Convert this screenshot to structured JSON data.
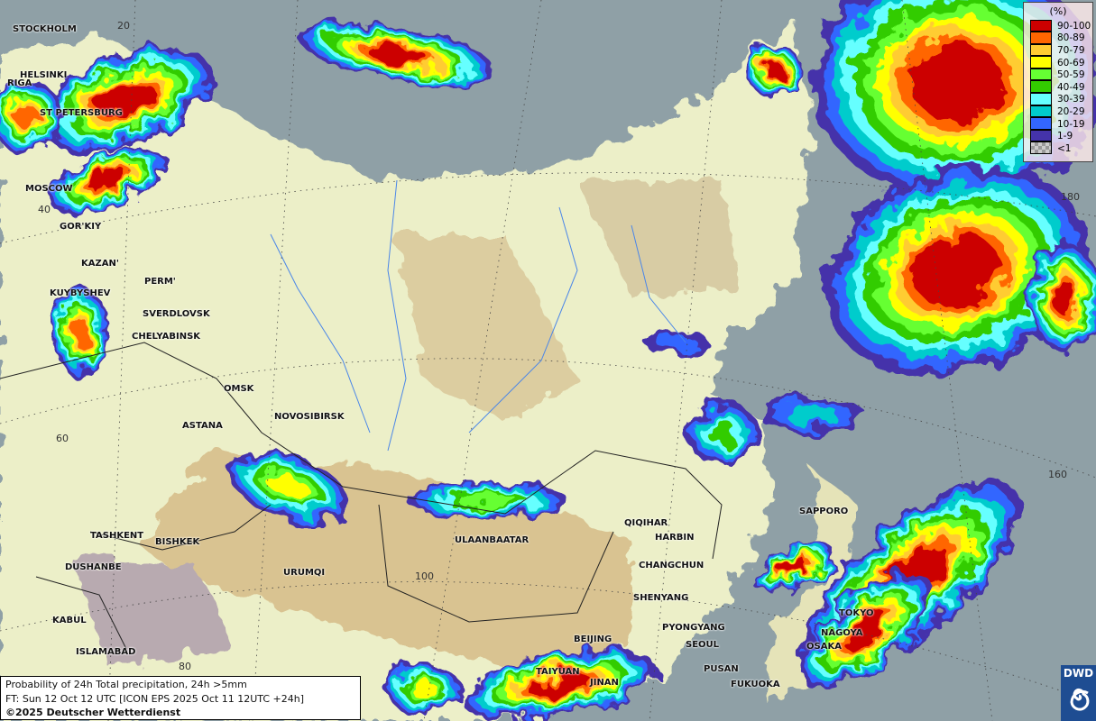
{
  "map": {
    "title": "Probability of 24h Total precipitation, 24h >5mm",
    "forecast_time": "FT: Sun 12 Oct 12 UTC [ICON EPS 2025 Oct 11 12UTC +24h]",
    "copyright": "©2025 Deutscher Wetterdienst",
    "logo_text": "DWD",
    "colors": {
      "sea": "#8fa0a6",
      "land": "#ecefc8",
      "desert": "#d9c391"
    },
    "cities": [
      "STOCKHOLM",
      "HELSINKI",
      "RIGA",
      "ST PETERSBURG",
      "MOSCOW",
      "GOR'KIY",
      "KAZAN'",
      "PERM'",
      "KUYBYSHEV",
      "SVERDLOVSK",
      "CHELYABINSK",
      "OMSK",
      "NOVOSIBIRSK",
      "ASTANA",
      "TASHKENT",
      "BISHKEK",
      "DUSHANBE",
      "URUMQI",
      "KABUL",
      "ISLAMABAD",
      "ULAANBAATAR",
      "QIQIHAR",
      "HARBIN",
      "CHANGCHUN",
      "SHENYANG",
      "BEIJING",
      "PYONGYANG",
      "SEOUL",
      "TAIYUAN",
      "JINAN",
      "PUSAN",
      "FUKUOKA",
      "SAPPORO",
      "TOKYO",
      "NAGOYA",
      "OSAKA"
    ],
    "grid_labels": [
      "20",
      "40",
      "60",
      "80",
      "100",
      "160",
      "180"
    ]
  },
  "legend": {
    "unit": "(%)",
    "classes": [
      {
        "label": "90-100",
        "color": "#cc0000"
      },
      {
        "label": "80-89",
        "color": "#ff6600"
      },
      {
        "label": "70-79",
        "color": "#ffcc33"
      },
      {
        "label": "60-69",
        "color": "#ffff00"
      },
      {
        "label": "50-59",
        "color": "#66ff33"
      },
      {
        "label": "40-49",
        "color": "#33cc00"
      },
      {
        "label": "30-39",
        "color": "#66ffff"
      },
      {
        "label": "20-29",
        "color": "#00cccc"
      },
      {
        "label": "10-19",
        "color": "#3366ff"
      },
      {
        "label": "1-9",
        "color": "#4433aa"
      },
      {
        "label": "<1",
        "color": "checker"
      }
    ]
  }
}
